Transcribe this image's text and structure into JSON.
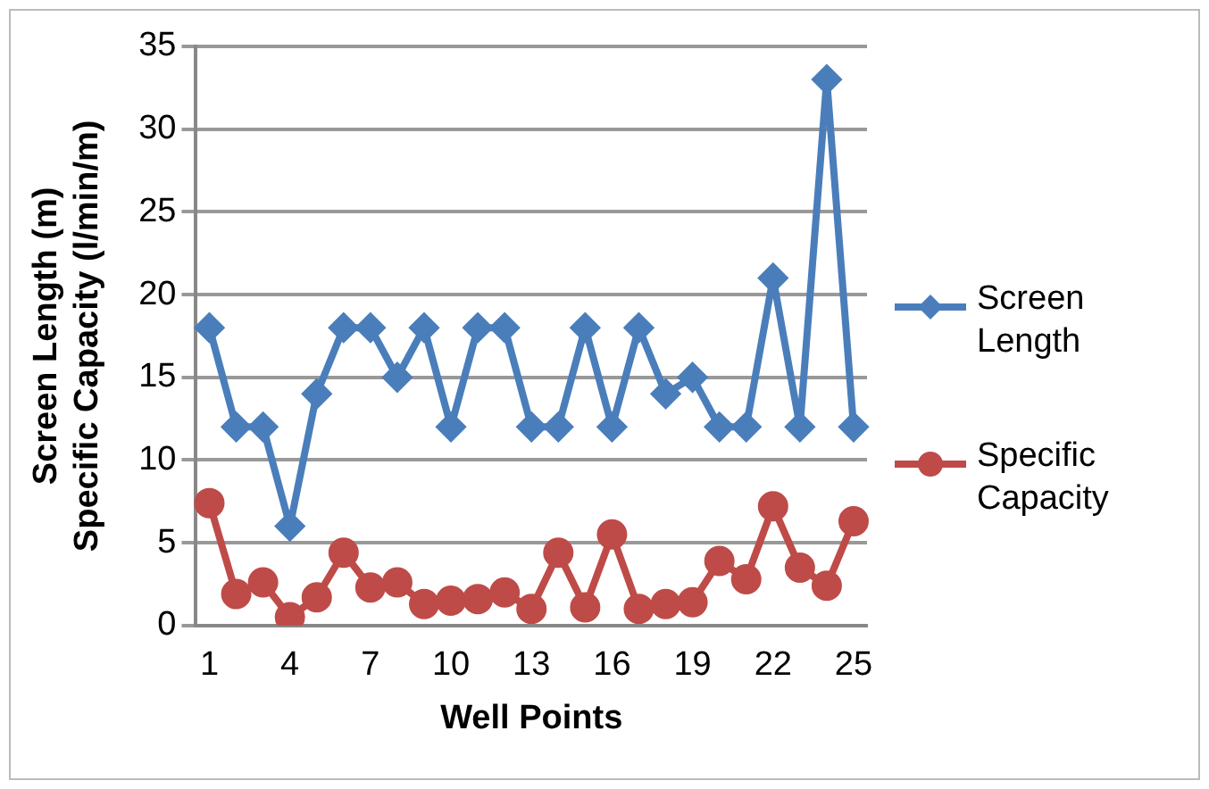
{
  "chart_data": {
    "type": "line",
    "xlabel": "Well Points",
    "ylabel": "Screen Length (m)\nSpecific Capacity (l/min/m)",
    "categories": [
      "1",
      null,
      null,
      "4",
      null,
      null,
      "7",
      null,
      null,
      "10",
      null,
      null,
      "13",
      null,
      null,
      "16",
      null,
      null,
      "19",
      null,
      null,
      "22",
      null,
      null,
      "25"
    ],
    "series": [
      {
        "name": "Screen Length",
        "color": "#4a7ebb",
        "marker": "diamond",
        "values": [
          18,
          12,
          12,
          6,
          14,
          18,
          18,
          15,
          18,
          12,
          18,
          18,
          12,
          12,
          18,
          12,
          18,
          14,
          15,
          12,
          12,
          21,
          12,
          33,
          12
        ]
      },
      {
        "name": "Specific Capacity",
        "color": "#be4b48",
        "marker": "circle",
        "values": [
          7.4,
          1.9,
          2.6,
          0.5,
          1.7,
          4.4,
          2.3,
          2.6,
          1.3,
          1.5,
          1.6,
          2.0,
          1.0,
          4.4,
          1.1,
          5.5,
          1.0,
          1.3,
          1.4,
          3.9,
          2.8,
          7.2,
          3.5,
          2.4,
          6.3
        ]
      }
    ],
    "ylim": [
      0,
      35
    ],
    "yticks": [
      0,
      5,
      10,
      15,
      20,
      25,
      30,
      35
    ],
    "grid": "y",
    "legend": "right"
  }
}
